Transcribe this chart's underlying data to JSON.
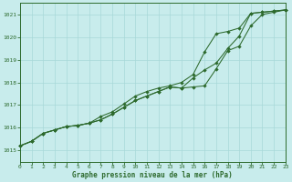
{
  "title": "Graphe pression niveau de la mer (hPa)",
  "bg_color": "#c8ecec",
  "line_color": "#2d6a2d",
  "xlim": [
    0,
    23
  ],
  "ylim": [
    1014.5,
    1021.5
  ],
  "yticks": [
    1015,
    1016,
    1017,
    1018,
    1019,
    1020,
    1021
  ],
  "xticks": [
    0,
    1,
    2,
    3,
    4,
    5,
    6,
    7,
    8,
    9,
    10,
    11,
    12,
    13,
    14,
    15,
    16,
    17,
    18,
    19,
    20,
    21,
    22,
    23
  ],
  "line1_x": [
    0,
    1,
    2,
    3,
    4,
    5,
    6,
    7,
    8,
    9,
    10,
    11,
    12,
    13,
    14,
    15,
    16,
    17,
    18,
    19,
    20,
    21,
    22,
    23
  ],
  "line1_y": [
    1015.2,
    1015.4,
    1015.75,
    1015.9,
    1016.05,
    1016.1,
    1016.2,
    1016.35,
    1016.6,
    1016.9,
    1017.2,
    1017.4,
    1017.6,
    1017.8,
    1017.75,
    1017.8,
    1017.85,
    1018.6,
    1019.4,
    1019.6,
    1020.5,
    1021.0,
    1021.1,
    1021.2
  ],
  "line2_x": [
    0,
    1,
    2,
    3,
    4,
    5,
    6,
    7,
    8,
    9,
    10,
    11,
    12,
    13,
    14,
    15,
    16,
    17,
    18,
    19,
    20,
    21,
    22,
    23
  ],
  "line2_y": [
    1015.2,
    1015.4,
    1015.75,
    1015.9,
    1016.05,
    1016.1,
    1016.2,
    1016.5,
    1016.7,
    1017.05,
    1017.4,
    1017.6,
    1017.75,
    1017.85,
    1018.0,
    1018.35,
    1019.35,
    1020.15,
    1020.25,
    1020.4,
    1021.05,
    1021.1,
    1021.15,
    1021.2
  ],
  "line3_x": [
    0,
    1,
    2,
    3,
    4,
    5,
    6,
    7,
    8,
    9,
    10,
    11,
    12,
    13,
    14,
    15,
    16,
    17,
    18,
    19,
    20,
    21,
    22,
    23
  ],
  "line3_y": [
    1015.2,
    1015.4,
    1015.75,
    1015.9,
    1016.05,
    1016.1,
    1016.2,
    1016.35,
    1016.6,
    1016.9,
    1017.2,
    1017.4,
    1017.6,
    1017.8,
    1017.75,
    1018.2,
    1018.55,
    1018.85,
    1019.5,
    1020.05,
    1021.05,
    1021.1,
    1021.15,
    1021.2
  ]
}
